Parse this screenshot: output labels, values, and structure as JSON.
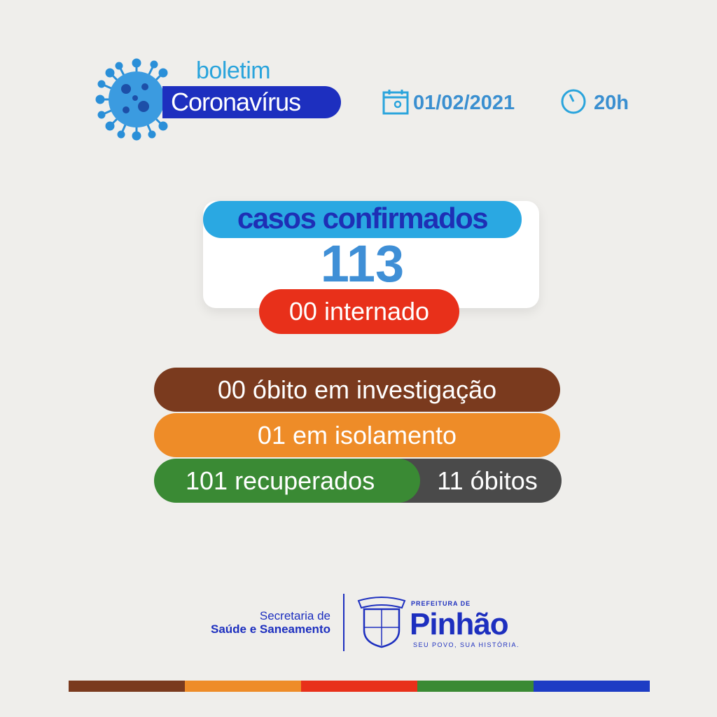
{
  "header": {
    "boletim": "boletim",
    "title": "Coronavírus",
    "date": "01/02/2021",
    "time": "20h",
    "icons": [
      "virus-icon",
      "calendar-icon",
      "clock-icon"
    ]
  },
  "main": {
    "confirmed_label": "casos confirmados",
    "confirmed_value": "113",
    "hospitalized": "00 internado",
    "under_investigation": "00 óbito em investigação",
    "isolation": "01 em isolamento",
    "recovered": "101 recuperados",
    "deaths": "11 óbitos"
  },
  "footer": {
    "secretaria_line1": "Secretaria de",
    "secretaria_line2": "Saúde e Saneamento",
    "crest_text": "PINHÃO",
    "prefeitura": "PREFEITURA DE",
    "city": "Pinhão",
    "slogan": "SEU POVO, SUA HISTÓRIA."
  },
  "colors": {
    "blue": "#1d2fbf",
    "light_blue": "#2aa8e2",
    "red": "#e8301a",
    "brown": "#7a3a1e",
    "orange": "#ee8c28",
    "green": "#3a8a34",
    "gray": "#4a4a4a"
  },
  "strip_colors": [
    "#7a3a1e",
    "#ee8c28",
    "#e8301a",
    "#3a8a34",
    "#1d3cc4"
  ]
}
